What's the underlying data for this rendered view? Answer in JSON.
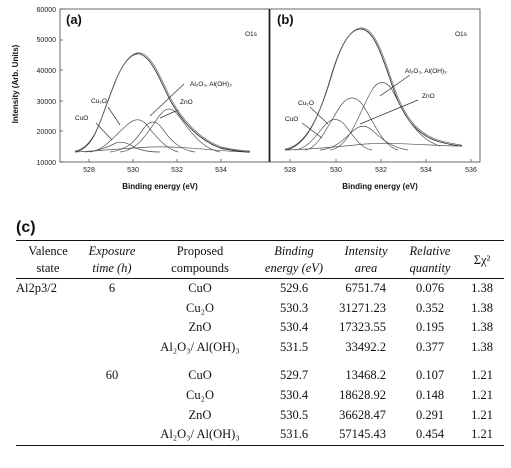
{
  "figure": {
    "panels": [
      {
        "tag": "(a)",
        "corner_label": "O1s",
        "ylabel": "Intensity (Arb. Units)",
        "xlabel": "Binding energy (eV)",
        "xticks": [
          528,
          530,
          532,
          534
        ],
        "yticks": [
          10000,
          20000,
          30000,
          40000,
          50000,
          60000
        ],
        "annotations": [
          "Al₂O₃, Al(OH)₃",
          "Cu₂O",
          "ZnO",
          "CuO"
        ]
      },
      {
        "tag": "(b)",
        "corner_label": "O1s",
        "xlabel": "Binding energy (eV)",
        "xticks": [
          528,
          530,
          532,
          534,
          536
        ],
        "annotations": [
          "Al₂O₃, Al(OH)₃",
          "Cu₂O",
          "ZnO",
          "CuO"
        ]
      }
    ]
  },
  "table": {
    "label": "(c)",
    "headers": {
      "valence": [
        "Valence",
        "state"
      ],
      "exposure": [
        "Exposure",
        "time (h)"
      ],
      "proposed": [
        "Proposed",
        "compounds"
      ],
      "binding": [
        "Binding",
        "energy (eV)"
      ],
      "intensity": [
        "Intensity",
        "area"
      ],
      "relative": [
        "Relative",
        "quantity"
      ],
      "chi": "Σχ²"
    },
    "rows": [
      {
        "valence": "Al2p3/2",
        "exposure": "6",
        "compound": "CuO",
        "binding": "529.6",
        "intensity": "6751.74",
        "relative": "0.076",
        "chi": "1.38"
      },
      {
        "valence": "",
        "exposure": "",
        "compound": "Cu₂O",
        "binding": "530.3",
        "intensity": "31271.23",
        "relative": "0.352",
        "chi": "1.38"
      },
      {
        "valence": "",
        "exposure": "",
        "compound": "ZnO",
        "binding": "530.4",
        "intensity": "17323.55",
        "relative": "0.195",
        "chi": "1.38"
      },
      {
        "valence": "",
        "exposure": "",
        "compound": "Al₂O₃/ Al(OH)₃",
        "binding": "531.5",
        "intensity": "33492.2",
        "relative": "0.377",
        "chi": "1.38"
      },
      {
        "valence": "",
        "exposure": "60",
        "compound": "CuO",
        "binding": "529.7",
        "intensity": "13468.2",
        "relative": "0.107",
        "chi": "1.21"
      },
      {
        "valence": "",
        "exposure": "",
        "compound": "Cu₂O",
        "binding": "530.4",
        "intensity": "18628.92",
        "relative": "0.148",
        "chi": "1.21"
      },
      {
        "valence": "",
        "exposure": "",
        "compound": "ZnO",
        "binding": "530.5",
        "intensity": "36628.47",
        "relative": "0.291",
        "chi": "1.21"
      },
      {
        "valence": "",
        "exposure": "",
        "compound": "Al₂O₃/ Al(OH)₃",
        "binding": "531.6",
        "intensity": "57145.43",
        "relative": "0.454",
        "chi": "1.21"
      }
    ]
  }
}
